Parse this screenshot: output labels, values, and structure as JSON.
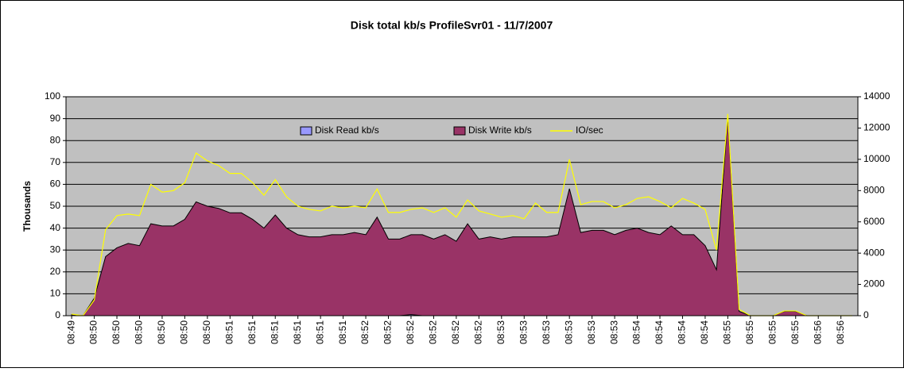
{
  "chart_data": {
    "type": "area",
    "title": "Disk total kb/s ProfileSvr01 - 11/7/2007",
    "y_label": "Thousands",
    "categories": [
      "08:49",
      null,
      "08:50",
      null,
      "08:50",
      null,
      "08:50",
      null,
      "08:50",
      null,
      "08:50",
      null,
      "08:50",
      null,
      "08:51",
      null,
      "08:51",
      null,
      "08:51",
      null,
      "08:51",
      null,
      "08:51",
      null,
      "08:51",
      null,
      "08:52",
      null,
      "08:52",
      null,
      "08:52",
      null,
      "08:52",
      null,
      "08:52",
      null,
      "08:52",
      null,
      "08:53",
      null,
      "08:53",
      null,
      "08:53",
      null,
      "08:53",
      null,
      "08:53",
      null,
      "08:53",
      null,
      "08:54",
      null,
      "08:54",
      null,
      "08:54",
      null,
      "08:54",
      null,
      "08:55",
      null,
      "08:55",
      null,
      "08:55",
      null,
      "08:55",
      null,
      "08:56",
      null,
      "08:56",
      null
    ],
    "series": [
      {
        "name": "Disk Read kb/s",
        "kind": "area",
        "color": "#9999ff",
        "values": [
          0,
          0,
          0,
          0,
          0,
          0,
          0,
          0,
          0,
          0,
          0,
          0,
          0,
          0,
          0,
          0,
          0,
          0,
          0,
          0,
          0,
          0,
          0,
          0,
          0,
          0,
          0,
          0,
          0,
          0,
          0.5,
          0,
          0,
          0,
          0,
          0,
          0,
          0,
          0,
          0,
          0,
          0,
          0,
          0,
          0,
          0,
          0,
          0,
          0,
          0,
          0,
          0,
          0,
          0,
          0,
          0,
          0,
          0,
          0,
          0,
          0,
          0,
          0,
          0,
          0,
          0,
          0,
          0,
          0,
          0
        ]
      },
      {
        "name": "Disk Write kb/s",
        "kind": "area",
        "color": "#993366",
        "values": [
          0.5,
          0,
          8,
          27,
          31,
          33,
          32,
          42,
          41,
          41,
          44,
          52,
          50,
          49,
          47,
          47,
          44,
          40,
          46,
          40,
          37,
          36,
          36,
          37,
          37,
          38,
          37,
          45,
          35,
          35,
          37,
          37,
          35,
          37,
          34,
          42,
          35,
          36,
          35,
          36,
          36,
          36,
          36,
          37,
          58,
          38,
          39,
          39,
          37,
          39,
          40,
          38,
          37,
          41,
          37,
          37,
          32,
          21,
          91,
          2,
          0,
          0,
          0,
          2,
          2,
          0,
          0,
          0,
          0,
          0
        ]
      },
      {
        "name": "IO/sec",
        "kind": "line",
        "axis": "y2",
        "color": "#ffff00",
        "values": [
          100,
          0,
          1000,
          5500,
          6400,
          6500,
          6400,
          8400,
          7900,
          8000,
          8500,
          10400,
          9900,
          9600,
          9100,
          9100,
          8500,
          7700,
          8700,
          7600,
          7000,
          6800,
          6700,
          7000,
          6900,
          7000,
          6900,
          8100,
          6600,
          6600,
          6800,
          6900,
          6600,
          6900,
          6300,
          7400,
          6700,
          6500,
          6300,
          6400,
          6200,
          7200,
          6600,
          6600,
          10000,
          7100,
          7300,
          7300,
          6900,
          7100,
          7500,
          7600,
          7300,
          6900,
          7500,
          7200,
          6800,
          4200,
          12900,
          400,
          0,
          0,
          0,
          300,
          300,
          0,
          0,
          0,
          0,
          0
        ]
      }
    ],
    "ylim": [
      0,
      100
    ],
    "yticks": [
      0,
      10,
      20,
      30,
      40,
      50,
      60,
      70,
      80,
      90,
      100
    ],
    "y2lim": [
      0,
      14000
    ],
    "y2ticks": [
      0,
      2000,
      4000,
      6000,
      8000,
      10000,
      12000,
      14000
    ],
    "grid": true
  }
}
